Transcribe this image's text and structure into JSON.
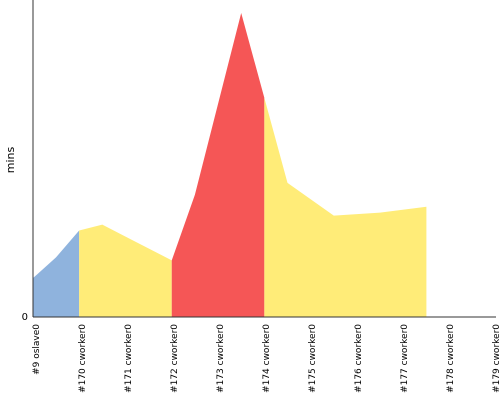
{
  "chart_data": {
    "type": "area",
    "ylabel": "mins",
    "xlabel": "",
    "y_zero_label": "0",
    "categories": [
      "#9 oslave0",
      "#170 cworker0",
      "#171 cworker0",
      "#172 cworker0",
      "#173 cworker0",
      "#174 cworker0",
      "#175 cworker0",
      "#176 cworker0",
      "#177 cworker0",
      "#178 cworker0",
      "#179 cworker0"
    ],
    "values": [
      13,
      20,
      29,
      31,
      19,
      41,
      102,
      45,
      34,
      35,
      37
    ],
    "value_positions": [
      -0.5,
      0,
      0.5,
      1,
      2.5,
      3,
      4,
      5,
      6,
      7,
      8
    ],
    "ylim": [
      0,
      105
    ],
    "segments": [
      {
        "start": 0,
        "end": 1,
        "color": "#8fb3dd"
      },
      {
        "start": 1,
        "end": 3,
        "color": "#ffec78"
      },
      {
        "start": 3,
        "end": 5,
        "color": "#f55656"
      },
      {
        "start": 5,
        "end": 10,
        "color": "#ffec78"
      }
    ],
    "grid": false,
    "legend": "none"
  }
}
